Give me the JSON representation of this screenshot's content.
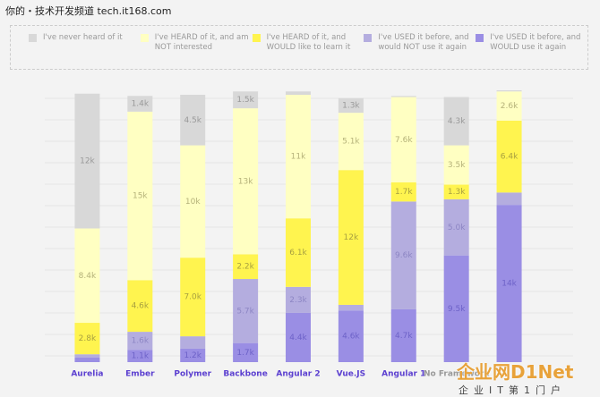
{
  "chart_data": {
    "type": "stacked_bar",
    "categories": [
      "Aurelia",
      "Ember",
      "Polymer",
      "Backbone",
      "Angular 2",
      "Vue.JS",
      "Angular 1",
      "No Framework",
      null
    ],
    "ylim": [
      0,
      24200
    ],
    "series": [
      {
        "name": "I've never heard of it",
        "color": "#d8d8d8",
        "values": [
          12000,
          1400,
          4500,
          1500,
          300,
          1300,
          100,
          4300,
          100
        ],
        "value_labels": [
          "12k",
          "1.4k",
          "4.5k",
          "1.5k",
          null,
          "1.3k",
          null,
          "4.3k",
          null
        ]
      },
      {
        "name": "I've HEARD of it, and am NOT interested",
        "color": "#ffffc2",
        "values": [
          8400,
          15000,
          10000,
          13000,
          11000,
          5100,
          7600,
          3500,
          2600
        ],
        "value_labels": [
          "8.4k",
          "15k",
          "10k",
          "13k",
          "11k",
          "5.1k",
          "7.6k",
          "3.5k",
          "2.6k"
        ]
      },
      {
        "name": "I've HEARD of it, and WOULD like to learn it",
        "color": "#fff44f",
        "values": [
          2800,
          4600,
          7000,
          2200,
          6100,
          12000,
          1700,
          1300,
          6400
        ],
        "value_labels": [
          "2.8k",
          "4.6k",
          "7.0k",
          "2.2k",
          "6.1k",
          "12k",
          "1.7k",
          "1.3k",
          "6.4k"
        ]
      },
      {
        "name": "I've USED it before, and would NOT use it again",
        "color": "#b4addf",
        "values": [
          300,
          1600,
          1100,
          5700,
          2300,
          500,
          9600,
          5000,
          1100
        ],
        "value_labels": [
          null,
          "1.6k",
          null,
          "5.7k",
          "2.3k",
          null,
          "9.6k",
          "5.0k",
          null
        ]
      },
      {
        "name": "I've USED it before, and WOULD use it again",
        "color": "#9a8ee4",
        "values": [
          400,
          1100,
          1200,
          1700,
          4400,
          4600,
          4700,
          9500,
          14000
        ],
        "value_labels": [
          null,
          "1.1k",
          "1.2k",
          "1.7k",
          "4.4k",
          "4.6k",
          "4.7k",
          "9.5k",
          "14k"
        ]
      }
    ]
  },
  "watermarks": {
    "top": "你的・技术开发频道 tech.it168.com",
    "logo": "企业网D1Net",
    "slogan": "企业IT第1门户"
  }
}
